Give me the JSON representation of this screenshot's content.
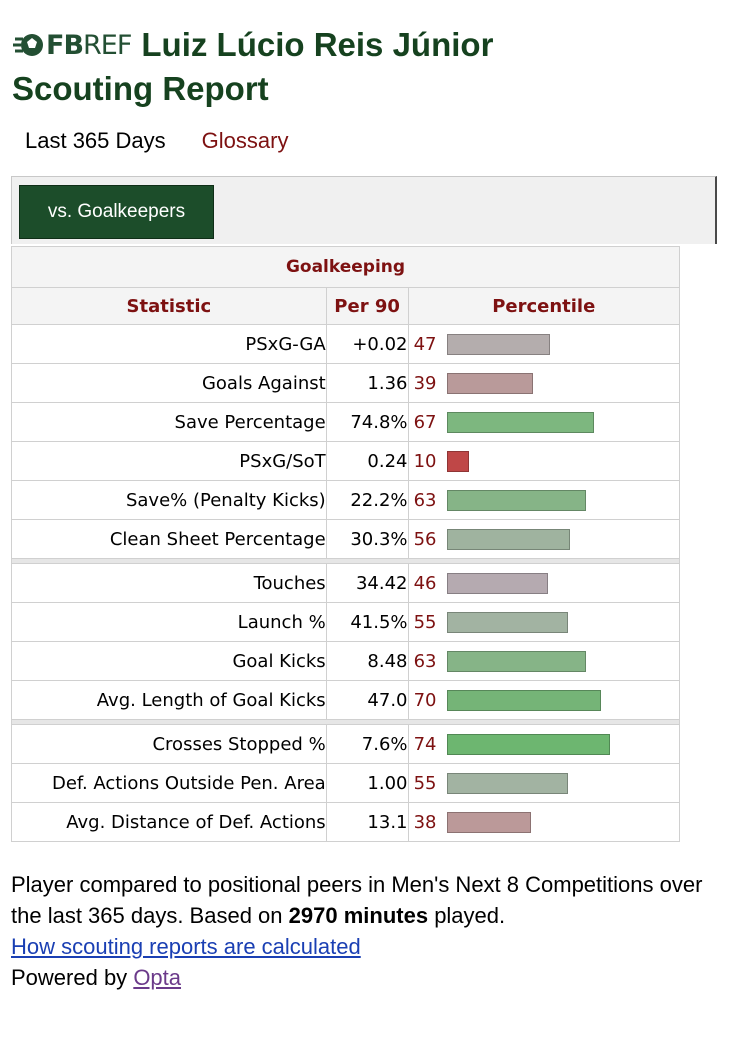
{
  "brand": {
    "logo_text_bold": "FB",
    "logo_text_rest": "REF"
  },
  "header": {
    "player_name": "Luiz Lúcio Reis Júnior",
    "subtitle": "Scouting Report"
  },
  "tabs": {
    "active": "Last 365 Days",
    "glossary": "Glossary"
  },
  "filter": {
    "button_label": "vs. Goalkeepers"
  },
  "table": {
    "section_title": "Goalkeeping",
    "columns": {
      "statistic": "Statistic",
      "per90": "Per 90",
      "percentile": "Percentile"
    },
    "groups": [
      [
        {
          "stat": "PSxG-GA",
          "per90": "+0.02",
          "percentile": 47,
          "color": "#b4adad"
        },
        {
          "stat": "Goals Against",
          "per90": "1.36",
          "percentile": 39,
          "color": "#b99a9a"
        },
        {
          "stat": "Save Percentage",
          "per90": "74.8%",
          "percentile": 67,
          "color": "#7db77f"
        },
        {
          "stat": "PSxG/SoT",
          "per90": "0.24",
          "percentile": 10,
          "color": "#bf4747"
        },
        {
          "stat": "Save% (Penalty Kicks)",
          "per90": "22.2%",
          "percentile": 63,
          "color": "#86b487"
        },
        {
          "stat": "Clean Sheet Percentage",
          "per90": "30.3%",
          "percentile": 56,
          "color": "#9fb39f"
        }
      ],
      [
        {
          "stat": "Touches",
          "per90": "34.42",
          "percentile": 46,
          "color": "#b5aab0"
        },
        {
          "stat": "Launch %",
          "per90": "41.5%",
          "percentile": 55,
          "color": "#a2b3a2"
        },
        {
          "stat": "Goal Kicks",
          "per90": "8.48",
          "percentile": 63,
          "color": "#86b487"
        },
        {
          "stat": "Avg. Length of Goal Kicks",
          "per90": "47.0",
          "percentile": 70,
          "color": "#75b477"
        }
      ],
      [
        {
          "stat": "Crosses Stopped %",
          "per90": "7.6%",
          "percentile": 74,
          "color": "#6db670"
        },
        {
          "stat": "Def. Actions Outside Pen. Area",
          "per90": "1.00",
          "percentile": 55,
          "color": "#a2b3a2"
        },
        {
          "stat": "Avg. Distance of Def. Actions",
          "per90": "13.1",
          "percentile": 38,
          "color": "#bb9999"
        }
      ]
    ]
  },
  "footnote": {
    "text_before": "Player compared to positional peers in Men's Next 8 Competitions over the last 365 days. Based on",
    "minutes": "2970 minutes",
    "text_after": "played.",
    "calc_link": "How scouting reports are calculated",
    "powered_by": "Powered by",
    "opta": "Opta"
  }
}
